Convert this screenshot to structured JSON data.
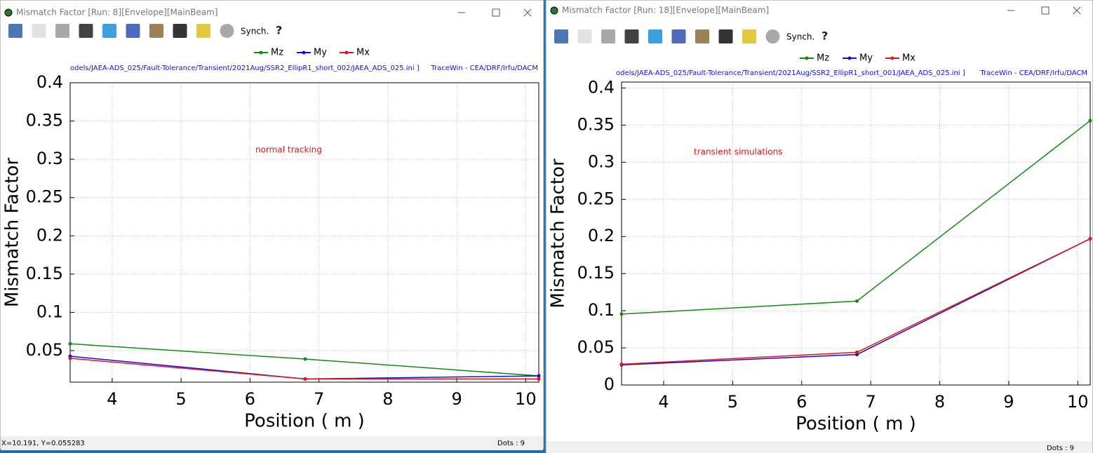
{
  "windows": [
    {
      "title": "Mismatch Factor [Run: 8][Envelope][MainBeam]",
      "toolbar_label": "Synch.",
      "file_path": "odels/JAEA-ADS_025/Fault-Tolerance/Transient/2021Aug/SSR2_EllipR1_short_002/JAEA_ADS_025.ini ]",
      "credit": "TraceWin - CEA/DRF/Irfu/DACM",
      "status": "X=10.191, Y=0.055283",
      "dots": "Dots : 9"
    },
    {
      "title": "Mismatch Factor [Run: 18][Envelope][MainBeam]",
      "toolbar_label": "Synch.",
      "file_path": "odels/JAEA-ADS_025/Fault-Tolerance/Transient/2021Aug/SSR2_EllipR1_short_001/JAEA_ADS_025.ini ]",
      "credit": "TraceWin - CEA/DRF/Irfu/DACM",
      "dots": "Dots : 9"
    }
  ],
  "chart_data": [
    {
      "type": "line",
      "annotation": "normal tracking",
      "xlabel": "Position ( m )",
      "ylabel": "Mismatch Factor",
      "x": [
        3.39,
        6.8,
        10.19
      ],
      "series": [
        {
          "name": "Mz",
          "color": "#138a13",
          "values": [
            0.059,
            0.039,
            0.017
          ]
        },
        {
          "name": "My",
          "color": "#1010d8",
          "values": [
            0.0427,
            0.013,
            0.017
          ]
        },
        {
          "name": "Mx",
          "color": "#e01515",
          "values": [
            0.04,
            0.013,
            0.013
          ]
        }
      ],
      "xlim": [
        3.39,
        10.19
      ],
      "ylim": [
        0.0088,
        0.4
      ],
      "xticks": [
        4,
        5,
        6,
        7,
        8,
        9,
        10
      ],
      "yticks": [
        0.05,
        0.1,
        0.15,
        0.2,
        0.25,
        0.3,
        0.35,
        0.4
      ],
      "grid": true
    },
    {
      "type": "line",
      "annotation": "transient simulations",
      "xlabel": "Position ( m )",
      "ylabel": "Mismatch Factor",
      "x": [
        3.39,
        6.8,
        10.18
      ],
      "series": [
        {
          "name": "Mz",
          "color": "#138a13",
          "values": [
            0.0955,
            0.113,
            0.356
          ]
        },
        {
          "name": "My",
          "color": "#1010d8",
          "values": [
            0.027,
            0.041,
            0.197
          ]
        },
        {
          "name": "Mx",
          "color": "#e01515",
          "values": [
            0.028,
            0.044,
            0.197
          ]
        }
      ],
      "xlim": [
        3.39,
        10.18
      ],
      "ylim": [
        0,
        0.408
      ],
      "xticks": [
        4,
        5,
        6,
        7,
        8,
        9,
        10
      ],
      "yticks": [
        0,
        0.05,
        0.1,
        0.15,
        0.2,
        0.25,
        0.3,
        0.35,
        0.4
      ],
      "grid": true
    }
  ]
}
